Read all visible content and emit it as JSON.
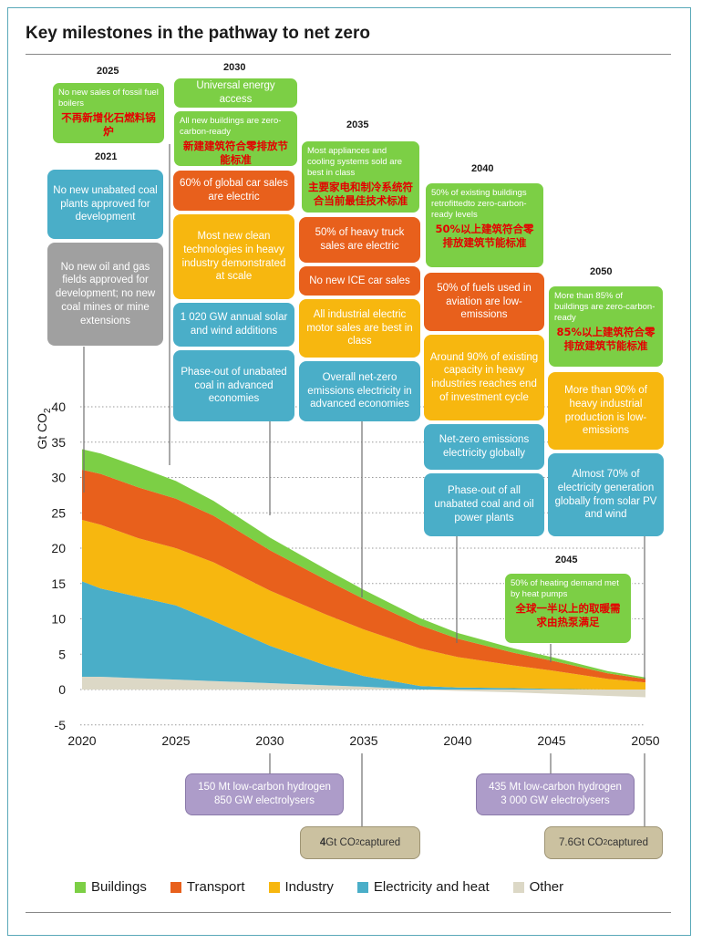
{
  "title": "Key milestones in the pathway to net zero",
  "colors": {
    "buildings": "#7ccf45",
    "transport": "#e8601c",
    "industry": "#f7b70f",
    "electricity": "#4aaec8",
    "other": "#dcd8c6",
    "frame": "#5aa9b9"
  },
  "years": {
    "y2021": "2021",
    "y2025": "2025",
    "y2030": "2030",
    "y2035": "2035",
    "y2040": "2040",
    "y2045": "2045",
    "y2050": "2050"
  },
  "milestones": {
    "m2025_fossil": {
      "en": "No new sales of fossil fuel boilers",
      "zh": "不再新增化石燃料锅炉"
    },
    "m2021_coal": {
      "en": "No new unabated coal plants approved for development"
    },
    "m2021_oilgas": {
      "en": "No new oil and gas fields approved for development; no new coal mines or mine extensions"
    },
    "m2030_access": {
      "en": "Universal energy access"
    },
    "m2030_buildings": {
      "en": "All new buildings are zero-carbon-ready",
      "zh": "新建建筑符合零排放节能标准"
    },
    "m2030_cars": {
      "en": "60% of global car sales are electric"
    },
    "m2030_tech": {
      "en": "Most new clean technologies in heavy industry demonstrated at scale"
    },
    "m2030_solar": {
      "en": "1 020 GW annual solar and wind additions"
    },
    "m2030_coalphase": {
      "en": "Phase-out of unabated coal in advanced economies"
    },
    "m2035_appliances": {
      "en": "Most appliances and cooling systems sold are best in class",
      "zh": "主要家电和制冷系统符合当前最佳技术标准"
    },
    "m2035_truck": {
      "en": "50% of heavy truck sales are electric"
    },
    "m2035_ice": {
      "en": "No new ICE car sales"
    },
    "m2035_motor": {
      "en": "All industrial electric motor sales are best in class"
    },
    "m2035_netzero": {
      "en": "Overall net-zero emissions electricity in advanced economies"
    },
    "m2040_retrofit": {
      "en": "50% of existing buildings retrofittedto zero-carbon-ready levels",
      "zh": "50%以上建筑符合零排放建筑节能标准"
    },
    "m2040_aviation": {
      "en": "50% of fuels used in aviation are low-emissions"
    },
    "m2040_heavy": {
      "en": "Around 90% of existing capacity in heavy industries reaches end of investment cycle"
    },
    "m2040_elec": {
      "en": "Net-zero emissions electricity globally"
    },
    "m2040_coaloil": {
      "en": "Phase-out of all unabated coal and oil power plants"
    },
    "m2050_buildings": {
      "en": "More than 85% of buildings are zero-carbon-ready",
      "zh": "85%以上建筑符合零排放建筑节能标准"
    },
    "m2050_industrial": {
      "en": "More than 90% of heavy industrial production is low-emissions"
    },
    "m2050_solarpv": {
      "en": "Almost 70% of electricity generation globally from solar PV and wind"
    },
    "m2045_heat": {
      "en": "50% of heating demand met by heat pumps",
      "zh": "全球一半以上的取暖需求由热泵满足"
    },
    "b2030_hydrogen": {
      "line1": "150 Mt low-carbon hydrogen",
      "line2": "850 GW electrolysers"
    },
    "b2045_hydrogen": {
      "line1": "435 Mt low-carbon hydrogen",
      "line2": "3 000 GW electrolysers"
    },
    "b2035_captured": {
      "prefix": "4",
      "unit": " Gt CO",
      "sub": "2",
      "suffix": " captured"
    },
    "b2050_captured": {
      "prefix": "7.6",
      "unit": " Gt CO",
      "sub": "2",
      "suffix": " captured"
    }
  },
  "legend": {
    "buildings": "Buildings",
    "transport": "Transport",
    "industry": "Industry",
    "electricity": "Electricity and heat",
    "other": "Other"
  },
  "chart_data": {
    "type": "area",
    "stacked": true,
    "title": "",
    "xlabel": "",
    "ylabel": "Gt CO2",
    "ylabel_main": "Gt CO",
    "ylabel_sub": "2",
    "xlim": [
      2020,
      2050
    ],
    "ylim": [
      -5,
      40
    ],
    "yticks": [
      -5,
      0,
      5,
      10,
      15,
      20,
      25,
      30,
      35,
      40
    ],
    "xticks": [
      2020,
      2025,
      2030,
      2035,
      2040,
      2045,
      2050
    ],
    "grid": "dotted horizontal",
    "legend_position": "bottom",
    "x": [
      2020,
      2021,
      2023,
      2025,
      2027,
      2030,
      2033,
      2035,
      2038,
      2040,
      2043,
      2045,
      2048,
      2050
    ],
    "series": [
      {
        "name": "Other",
        "values": [
          1.8,
          1.8,
          1.6,
          1.4,
          1.2,
          0.9,
          0.6,
          0.4,
          0.0,
          -0.2,
          -0.4,
          -0.6,
          -0.9,
          -1.1
        ]
      },
      {
        "name": "Electricity and heat",
        "values": [
          13.5,
          12.5,
          11.5,
          10.5,
          8.5,
          5.3,
          2.8,
          1.5,
          0.5,
          0.3,
          0.2,
          0.1,
          0.0,
          0.0
        ]
      },
      {
        "name": "Industry",
        "values": [
          8.7,
          9.0,
          8.3,
          8.1,
          8.3,
          7.8,
          7.2,
          6.6,
          5.3,
          4.3,
          3.2,
          2.6,
          1.5,
          1.0
        ]
      },
      {
        "name": "Transport",
        "values": [
          7.1,
          7.2,
          7.2,
          7.0,
          6.6,
          5.7,
          4.9,
          4.3,
          3.3,
          2.6,
          1.8,
          1.4,
          0.8,
          0.5
        ]
      },
      {
        "name": "Buildings",
        "values": [
          2.9,
          2.9,
          2.9,
          2.5,
          2.1,
          1.8,
          1.5,
          1.3,
          1.0,
          0.8,
          0.6,
          0.5,
          0.3,
          0.2
        ]
      }
    ],
    "series_colors": [
      "#dcd8c6",
      "#4aaec8",
      "#f7b70f",
      "#e8601c",
      "#7ccf45"
    ]
  }
}
